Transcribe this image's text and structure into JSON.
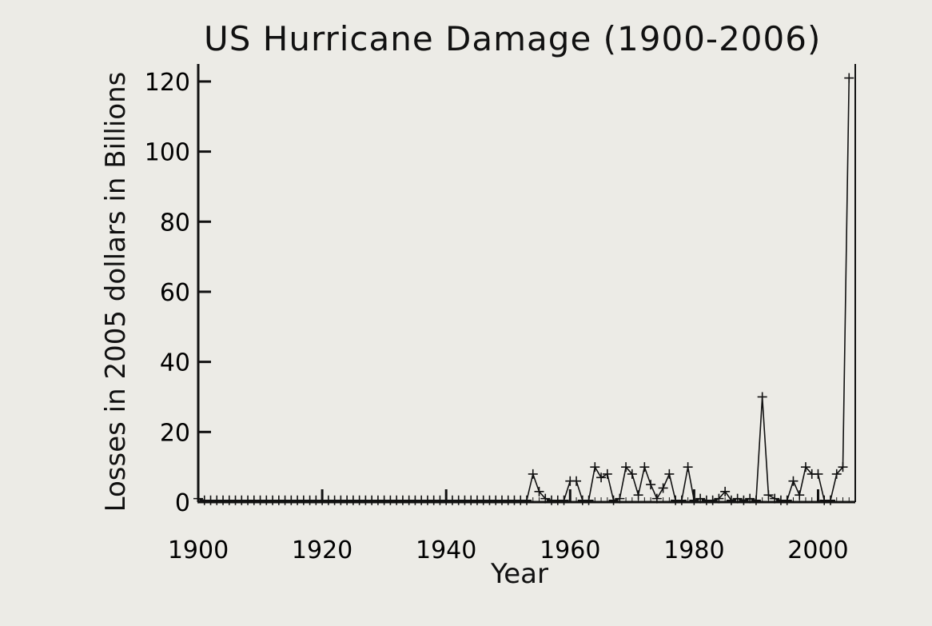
{
  "chart_data": {
    "type": "line",
    "title": "US  Hurricane Damage  (1900-2006)",
    "xlabel": "Year",
    "ylabel": "Losses in 2005 dollars in Billions",
    "xlim": [
      1900,
      2006
    ],
    "ylim": [
      0,
      125
    ],
    "xticks": [
      1900,
      1920,
      1940,
      1960,
      1980,
      2000
    ],
    "yticks": [
      0,
      20,
      40,
      60,
      80,
      100,
      120
    ],
    "grid": false,
    "marker": "plus",
    "x": [
      1900,
      1901,
      1902,
      1903,
      1904,
      1905,
      1906,
      1907,
      1908,
      1909,
      1910,
      1911,
      1912,
      1913,
      1914,
      1915,
      1916,
      1917,
      1918,
      1919,
      1920,
      1921,
      1922,
      1923,
      1924,
      1925,
      1926,
      1927,
      1928,
      1929,
      1930,
      1931,
      1932,
      1933,
      1934,
      1935,
      1936,
      1937,
      1938,
      1939,
      1940,
      1941,
      1942,
      1943,
      1944,
      1945,
      1946,
      1947,
      1948,
      1949,
      1950,
      1951,
      1952,
      1953,
      1954,
      1955,
      1956,
      1957,
      1958,
      1959,
      1960,
      1961,
      1962,
      1963,
      1964,
      1965,
      1966,
      1967,
      1968,
      1969,
      1970,
      1971,
      1972,
      1973,
      1974,
      1975,
      1976,
      1977,
      1978,
      1979,
      1980,
      1981,
      1982,
      1983,
      1984,
      1985,
      1986,
      1987,
      1988,
      1989,
      1990,
      1991,
      1992,
      1993,
      1994,
      1995,
      1996,
      1997,
      1998,
      1999,
      2000,
      2001,
      2002,
      2003,
      2004,
      2005
    ],
    "y": [
      1,
      0.5,
      0.5,
      0.5,
      0.5,
      0.5,
      0.5,
      0.5,
      0.5,
      0.5,
      0.5,
      0.5,
      0.5,
      0.5,
      0.5,
      0.5,
      0.5,
      0.5,
      0.5,
      0.5,
      0.5,
      0.5,
      0.5,
      0.5,
      0.5,
      0.5,
      0.5,
      0.5,
      0.5,
      0.5,
      0.5,
      0.5,
      0.5,
      0.5,
      0.5,
      0.5,
      0.5,
      0.5,
      0.5,
      0.5,
      0.5,
      0.5,
      0.5,
      0.5,
      0.5,
      0.5,
      0.5,
      0.5,
      0.5,
      0.5,
      0.5,
      0.5,
      0.5,
      0.5,
      8,
      3,
      1,
      0.5,
      0.5,
      0.5,
      6,
      6,
      0.5,
      0.5,
      10,
      7,
      8,
      0.5,
      1,
      10,
      8,
      2,
      10,
      5,
      1,
      4,
      8,
      0.5,
      0.5,
      10,
      0.5,
      1,
      0.5,
      0.5,
      1,
      3,
      0.5,
      1,
      0.5,
      1,
      0.5,
      30,
      2,
      1,
      0.5,
      0.5,
      6,
      2,
      10,
      8,
      8,
      0.5,
      0.5,
      8,
      10,
      121
    ]
  }
}
